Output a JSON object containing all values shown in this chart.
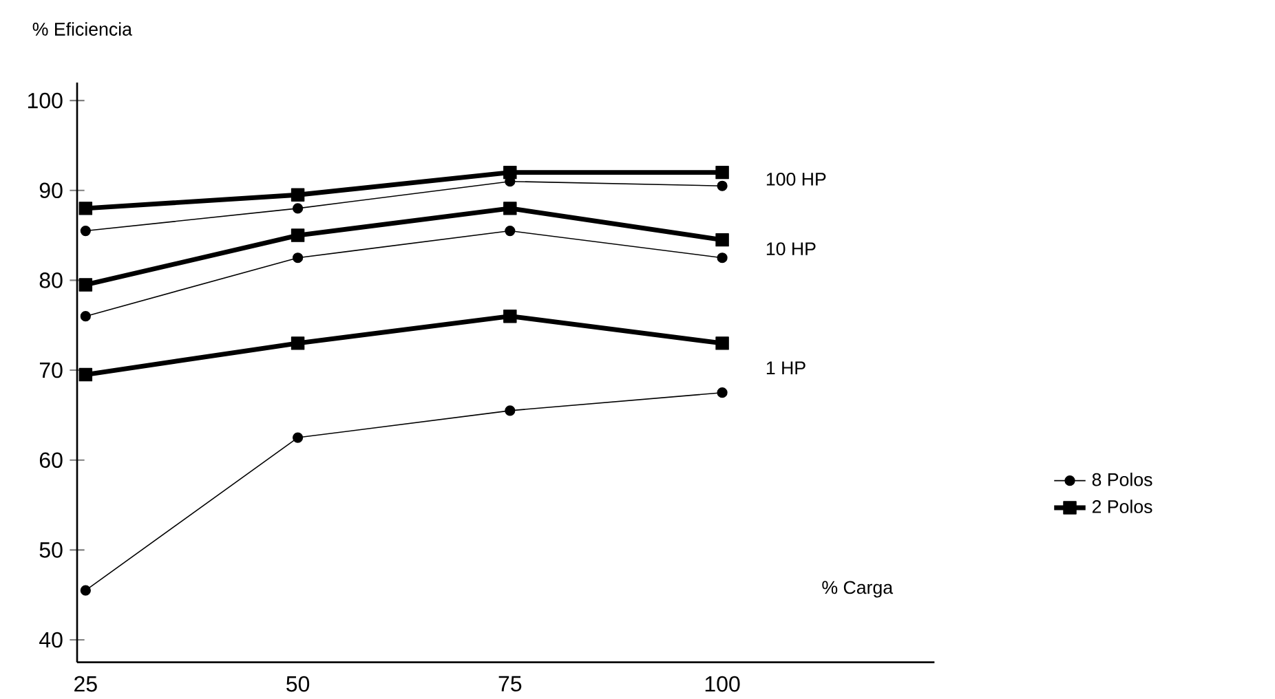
{
  "chart_data": {
    "type": "line",
    "xlabel": "% Carga",
    "ylabel": "% Eficiencia",
    "x": [
      25,
      50,
      75,
      100
    ],
    "series": [
      {
        "name": "8 Polos",
        "color": "#000000",
        "marker": "circle",
        "values": [
          85.5,
          88,
          91,
          90.5
        ]
      },
      {
        "name": "2 Polos",
        "color": "#000000",
        "marker": "square",
        "values": [
          88,
          89.5,
          92,
          92
        ]
      },
      {
        "color": "#000000",
        "marker": "circle",
        "values": [
          76,
          82.5,
          85.5,
          82.5
        ]
      },
      {
        "color": "#000000",
        "marker": "square",
        "values": [
          79.5,
          85,
          88,
          84.5
        ]
      },
      {
        "color": "#000000",
        "marker": "circle",
        "values": [
          45.5,
          62.5,
          65.5,
          67.5
        ]
      },
      {
        "color": "#000000",
        "marker": "square",
        "values": [
          69.5,
          73,
          76,
          73
        ]
      }
    ],
    "annotations": [
      "100 HP",
      "10 HP",
      "1 HP"
    ],
    "xlim": [
      24,
      125
    ],
    "ylim": [
      37.5,
      102
    ],
    "xticks": [
      25,
      50,
      75,
      100
    ],
    "yticks": [
      40,
      50,
      60,
      70,
      80,
      90,
      100
    ],
    "grid": false,
    "legend": "right"
  }
}
